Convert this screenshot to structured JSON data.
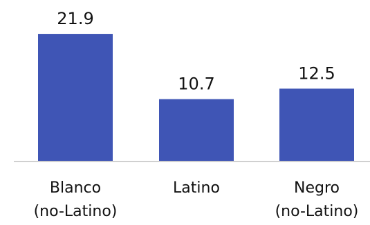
{
  "chart_data": {
    "type": "bar",
    "categories": [
      "Blanco (no-Latino)",
      "Latino",
      "Negro (no-Latino)"
    ],
    "category_lines": [
      [
        "Blanco",
        "(no-Latino)"
      ],
      [
        "Latino"
      ],
      [
        "Negro",
        "(no-Latino)"
      ]
    ],
    "values": [
      21.9,
      10.7,
      12.5
    ],
    "value_labels": [
      "21.9",
      "10.7",
      "12.5"
    ],
    "title": "",
    "xlabel": "",
    "ylabel": "",
    "ylim": [
      0,
      22.5
    ],
    "grid": false,
    "legend": "none",
    "colors": {
      "bar": "#3f55b5",
      "axis": "#d0d0d0",
      "text": "#111111"
    }
  }
}
